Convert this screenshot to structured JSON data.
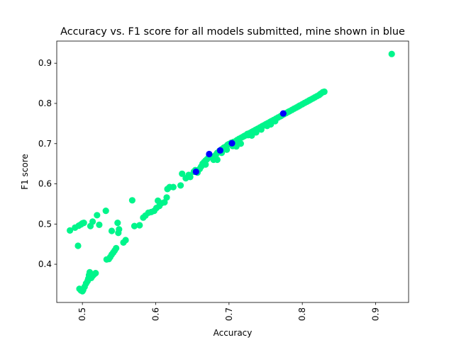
{
  "chart_data": {
    "type": "scatter",
    "title": "Accuracy vs. F1 score for all models submitted, mine shown in blue",
    "xlabel": "Accuracy",
    "ylabel": "F1 score",
    "xlim": [
      0.465,
      0.945
    ],
    "ylim": [
      0.305,
      0.955
    ],
    "xticks": [
      0.5,
      0.6,
      0.7,
      0.8,
      0.9
    ],
    "xtick_labels": [
      "0.5",
      "0.6",
      "0.7",
      "0.8",
      "0.9"
    ],
    "yticks": [
      0.4,
      0.5,
      0.6,
      0.7,
      0.8,
      0.9
    ],
    "ytick_labels": [
      "0.4",
      "0.5",
      "0.6",
      "0.7",
      "0.8",
      "0.9"
    ],
    "xtick_rotation": 90,
    "grid": false,
    "legend": "none",
    "colors": {
      "others": "#00f58b",
      "mine": "#0000ff"
    },
    "series": [
      {
        "points": [
          [
            0.483,
            0.484
          ],
          [
            0.49,
            0.491
          ],
          [
            0.495,
            0.496
          ],
          [
            0.498,
            0.499
          ],
          [
            0.5,
            0.502
          ],
          [
            0.502,
            0.503
          ],
          [
            0.494,
            0.446
          ],
          [
            0.496,
            0.339
          ],
          [
            0.498,
            0.335
          ],
          [
            0.5,
            0.333
          ],
          [
            0.501,
            0.336
          ],
          [
            0.503,
            0.344
          ],
          [
            0.505,
            0.352
          ],
          [
            0.507,
            0.358
          ],
          [
            0.508,
            0.364
          ],
          [
            0.509,
            0.373
          ],
          [
            0.51,
            0.38
          ],
          [
            0.512,
            0.366
          ],
          [
            0.514,
            0.371
          ],
          [
            0.516,
            0.375
          ],
          [
            0.518,
            0.378
          ],
          [
            0.511,
            0.495
          ],
          [
            0.514,
            0.506
          ],
          [
            0.52,
            0.522
          ],
          [
            0.523,
            0.498
          ],
          [
            0.532,
            0.533
          ],
          [
            0.533,
            0.412
          ],
          [
            0.536,
            0.413
          ],
          [
            0.538,
            0.418
          ],
          [
            0.54,
            0.424
          ],
          [
            0.542,
            0.429
          ],
          [
            0.544,
            0.434
          ],
          [
            0.546,
            0.44
          ],
          [
            0.548,
            0.503
          ],
          [
            0.549,
            0.478
          ],
          [
            0.55,
            0.487
          ],
          [
            0.54,
            0.483
          ],
          [
            0.556,
            0.454
          ],
          [
            0.559,
            0.46
          ],
          [
            0.568,
            0.559
          ],
          [
            0.571,
            0.495
          ],
          [
            0.578,
            0.497
          ],
          [
            0.583,
            0.516
          ],
          [
            0.586,
            0.521
          ],
          [
            0.59,
            0.528
          ],
          [
            0.594,
            0.53
          ],
          [
            0.598,
            0.533
          ],
          [
            0.601,
            0.54
          ],
          [
            0.603,
            0.558
          ],
          [
            0.605,
            0.545
          ],
          [
            0.608,
            0.552
          ],
          [
            0.612,
            0.554
          ],
          [
            0.615,
            0.566
          ],
          [
            0.616,
            0.587
          ],
          [
            0.619,
            0.592
          ],
          [
            0.624,
            0.592
          ],
          [
            0.634,
            0.596
          ],
          [
            0.636,
            0.625
          ],
          [
            0.641,
            0.614
          ],
          [
            0.645,
            0.622
          ],
          [
            0.647,
            0.617
          ],
          [
            0.652,
            0.63
          ],
          [
            0.654,
            0.634
          ],
          [
            0.657,
            0.628
          ],
          [
            0.66,
            0.637
          ],
          [
            0.662,
            0.643
          ],
          [
            0.664,
            0.65
          ],
          [
            0.666,
            0.654
          ],
          [
            0.668,
            0.658
          ],
          [
            0.67,
            0.661
          ],
          [
            0.672,
            0.665
          ],
          [
            0.676,
            0.668
          ],
          [
            0.679,
            0.66
          ],
          [
            0.682,
            0.672
          ],
          [
            0.684,
            0.677
          ],
          [
            0.687,
            0.682
          ],
          [
            0.69,
            0.686
          ],
          [
            0.693,
            0.69
          ],
          [
            0.696,
            0.693
          ],
          [
            0.698,
            0.697
          ],
          [
            0.7,
            0.699
          ],
          [
            0.703,
            0.702
          ],
          [
            0.706,
            0.704
          ],
          [
            0.709,
            0.706
          ],
          [
            0.711,
            0.709
          ],
          [
            0.714,
            0.712
          ],
          [
            0.717,
            0.715
          ],
          [
            0.72,
            0.718
          ],
          [
            0.722,
            0.72
          ],
          [
            0.725,
            0.724
          ],
          [
            0.728,
            0.726
          ],
          [
            0.731,
            0.729
          ],
          [
            0.733,
            0.731
          ],
          [
            0.736,
            0.734
          ],
          [
            0.739,
            0.737
          ],
          [
            0.742,
            0.74
          ],
          [
            0.745,
            0.743
          ],
          [
            0.747,
            0.745
          ],
          [
            0.75,
            0.748
          ],
          [
            0.753,
            0.751
          ],
          [
            0.756,
            0.754
          ],
          [
            0.758,
            0.756
          ],
          [
            0.761,
            0.759
          ],
          [
            0.764,
            0.762
          ],
          [
            0.767,
            0.765
          ],
          [
            0.77,
            0.768
          ],
          [
            0.772,
            0.77
          ],
          [
            0.775,
            0.773
          ],
          [
            0.778,
            0.776
          ],
          [
            0.781,
            0.779
          ],
          [
            0.783,
            0.781
          ],
          [
            0.786,
            0.784
          ],
          [
            0.789,
            0.787
          ],
          [
            0.792,
            0.79
          ],
          [
            0.795,
            0.793
          ],
          [
            0.797,
            0.795
          ],
          [
            0.8,
            0.798
          ],
          [
            0.803,
            0.801
          ],
          [
            0.806,
            0.804
          ],
          [
            0.809,
            0.807
          ],
          [
            0.811,
            0.809
          ],
          [
            0.814,
            0.812
          ],
          [
            0.817,
            0.815
          ],
          [
            0.82,
            0.818
          ],
          [
            0.823,
            0.821
          ],
          [
            0.825,
            0.824
          ],
          [
            0.828,
            0.828
          ],
          [
            0.83,
            0.829
          ],
          [
            0.705,
            0.694
          ],
          [
            0.71,
            0.693
          ],
          [
            0.716,
            0.7
          ],
          [
            0.726,
            0.721
          ],
          [
            0.731,
            0.72
          ],
          [
            0.737,
            0.728
          ],
          [
            0.744,
            0.735
          ],
          [
            0.752,
            0.744
          ],
          [
            0.757,
            0.748
          ],
          [
            0.763,
            0.756
          ],
          [
            0.69,
            0.677
          ],
          [
            0.697,
            0.685
          ],
          [
            0.668,
            0.648
          ],
          [
            0.684,
            0.66
          ],
          [
            0.922,
            0.923
          ]
        ]
      },
      {
        "points": [
          [
            0.673,
            0.674
          ],
          [
            0.655,
            0.63
          ],
          [
            0.688,
            0.683
          ],
          [
            0.774,
            0.775
          ],
          [
            0.704,
            0.701
          ]
        ]
      }
    ]
  }
}
